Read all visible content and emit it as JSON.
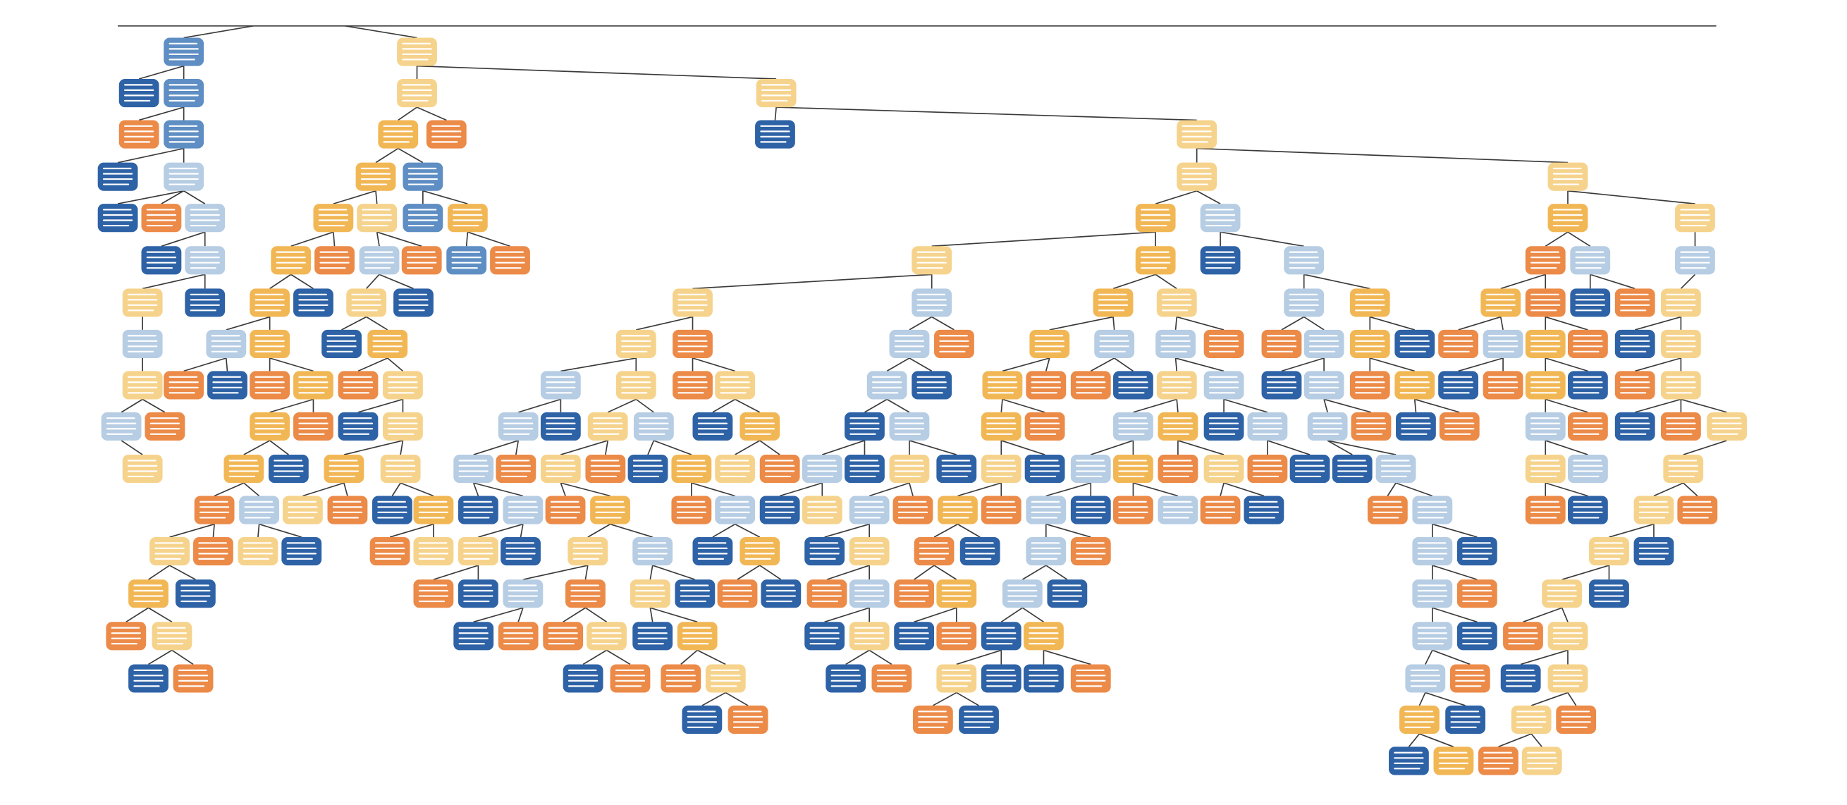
{
  "colors": [
    "#2e62a6",
    "#5e8ec3",
    "#b6cde4",
    "#f6d38c",
    "#f2b755",
    "#ec8a48"
  ]
}
